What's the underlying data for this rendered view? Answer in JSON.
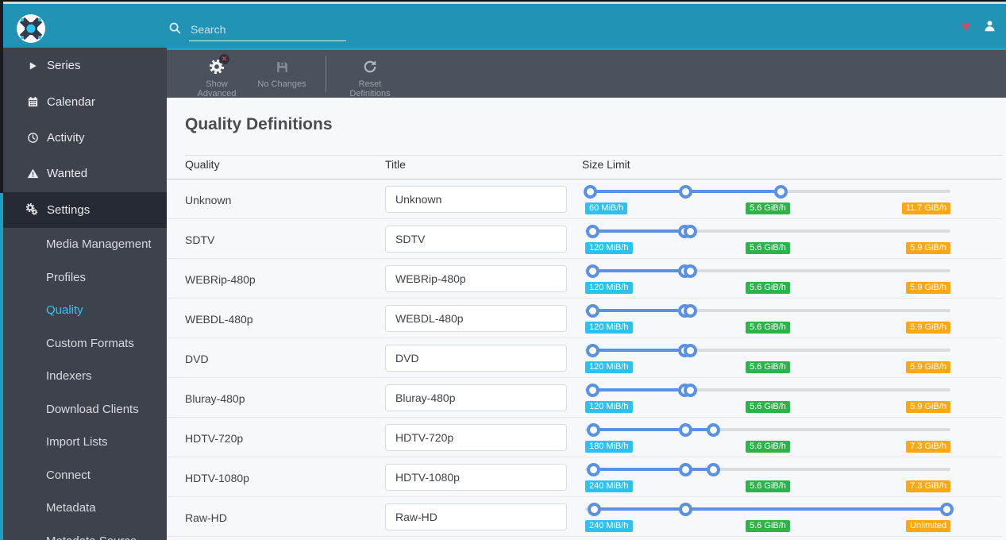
{
  "topbar": {
    "search_placeholder": "Search",
    "icons": {
      "logo": "sonarr-logo",
      "search": "search-icon",
      "donate": "heart-icon",
      "account": "user-icon"
    }
  },
  "sidebar": {
    "items": [
      {
        "label": "Series",
        "icon": "play-icon"
      },
      {
        "label": "Calendar",
        "icon": "calendar-icon"
      },
      {
        "label": "Activity",
        "icon": "clock-icon"
      },
      {
        "label": "Wanted",
        "icon": "warning-icon"
      },
      {
        "label": "Settings",
        "icon": "gears-icon",
        "active": true
      }
    ],
    "settings_subitems": [
      {
        "label": "Media Management"
      },
      {
        "label": "Profiles"
      },
      {
        "label": "Quality",
        "active": true
      },
      {
        "label": "Custom Formats"
      },
      {
        "label": "Indexers"
      },
      {
        "label": "Download Clients"
      },
      {
        "label": "Import Lists"
      },
      {
        "label": "Connect"
      },
      {
        "label": "Metadata"
      },
      {
        "label": "Metadata Source"
      }
    ]
  },
  "toolbar": {
    "buttons": [
      {
        "label": "Show Advanced",
        "icon": "advanced-gear-icon"
      },
      {
        "label": "No Changes",
        "icon": "save-icon"
      },
      {
        "label": "Reset Definitions",
        "icon": "refresh-icon"
      }
    ]
  },
  "page": {
    "title": "Quality Definitions"
  },
  "table": {
    "headers": [
      "Quality",
      "Title",
      "Size Limit"
    ],
    "rows": [
      {
        "quality": "Unknown",
        "title": "Unknown",
        "min_label": "60 MiB/h",
        "preferred_label": "5.6 GiB/h",
        "max_label": "11.7 GiB/h",
        "handles_pct": [
          1.5,
          27.6,
          53.5
        ]
      },
      {
        "quality": "SDTV",
        "title": "SDTV",
        "min_label": "120 MiB/h",
        "preferred_label": "5.6 GiB/h",
        "max_label": "5.9 GiB/h",
        "handles_pct": [
          2.0,
          27.2,
          28.7
        ]
      },
      {
        "quality": "WEBRip-480p",
        "title": "WEBRip-480p",
        "min_label": "120 MiB/h",
        "preferred_label": "5.6 GiB/h",
        "max_label": "5.9 GiB/h",
        "handles_pct": [
          2.0,
          27.2,
          28.7
        ]
      },
      {
        "quality": "WEBDL-480p",
        "title": "WEBDL-480p",
        "min_label": "120 MiB/h",
        "preferred_label": "5.6 GiB/h",
        "max_label": "5.9 GiB/h",
        "handles_pct": [
          2.0,
          27.2,
          28.7
        ]
      },
      {
        "quality": "DVD",
        "title": "DVD",
        "min_label": "120 MiB/h",
        "preferred_label": "5.6 GiB/h",
        "max_label": "5.9 GiB/h",
        "handles_pct": [
          2.0,
          27.2,
          28.7
        ]
      },
      {
        "quality": "Bluray-480p",
        "title": "Bluray-480p",
        "min_label": "120 MiB/h",
        "preferred_label": "5.6 GiB/h",
        "max_label": "5.9 GiB/h",
        "handles_pct": [
          2.0,
          27.2,
          28.7
        ]
      },
      {
        "quality": "HDTV-720p",
        "title": "HDTV-720p",
        "min_label": "180 MiB/h",
        "preferred_label": "5.6 GiB/h",
        "max_label": "7.3 GiB/h",
        "handles_pct": [
          2.2,
          27.4,
          35.0
        ]
      },
      {
        "quality": "HDTV-1080p",
        "title": "HDTV-1080p",
        "min_label": "240 MiB/h",
        "preferred_label": "5.6 GiB/h",
        "max_label": "7.3 GiB/h",
        "handles_pct": [
          2.2,
          27.4,
          35.0
        ]
      },
      {
        "quality": "Raw-HD",
        "title": "Raw-HD",
        "min_label": "240 MiB/h",
        "preferred_label": "5.6 GiB/h",
        "max_label": "Unlimited",
        "handles_pct": [
          2.6,
          27.5,
          99.1
        ]
      }
    ]
  },
  "colors": {
    "topbar_teal": "#2193b5",
    "toolbar_accent_teal": "#17a3c6",
    "sidebar_dark": "#3d424d",
    "sidebar_active_bg": "#262a33",
    "active_link_cyan": "#35c5f4",
    "slider_blue": "#5a91e2",
    "badge_min_cyan": "#2ac2f2",
    "badge_preferred_green": "#2bb44a",
    "badge_max_orange": "#ffa613",
    "heart_red": "#d9485c"
  }
}
